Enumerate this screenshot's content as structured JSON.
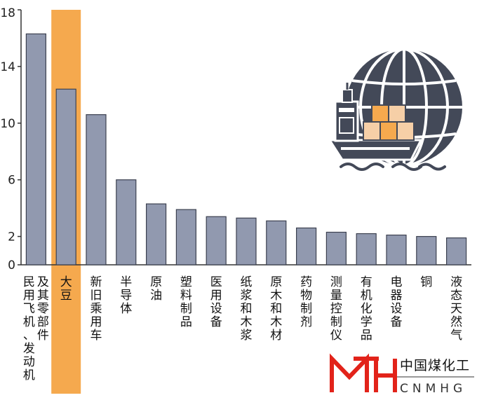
{
  "chart_data": {
    "type": "bar",
    "categories": [
      "民用飞机、发动机及其零部件",
      "大豆",
      "新旧乘用车",
      "半导体",
      "原油",
      "塑料制品",
      "医用设备",
      "纸浆和木浆",
      "原木和木材",
      "药物制剂",
      "测量控制仪",
      "有机化学品",
      "电器设备",
      "铜",
      "液态天然气"
    ],
    "label_columns": [
      [
        "民用飞机、发动机",
        "及其零部件"
      ],
      [
        "大豆"
      ],
      [
        "新旧乘用车"
      ],
      [
        "半导体"
      ],
      [
        "原油"
      ],
      [
        "塑料制品"
      ],
      [
        "医用设备"
      ],
      [
        "纸浆和木浆"
      ],
      [
        "原木和木材"
      ],
      [
        "药物制剂"
      ],
      [
        "测量控制仪"
      ],
      [
        "有机化学品"
      ],
      [
        "电器设备"
      ],
      [
        "铜"
      ],
      [
        "液态天然气"
      ]
    ],
    "values": [
      16.3,
      12.4,
      10.6,
      6.0,
      4.3,
      3.9,
      3.4,
      3.3,
      3.1,
      2.6,
      2.3,
      2.2,
      2.1,
      2.0,
      1.9
    ],
    "highlight_index": 1,
    "ylim": [
      0,
      18
    ],
    "yticks": [
      0,
      2,
      6,
      10,
      14,
      18
    ],
    "title": "",
    "xlabel": "",
    "ylabel": "",
    "grid": false,
    "colors": {
      "bar": "#9199af",
      "bar_stroke": "#3c4150",
      "highlight": "#f5a94e",
      "axis": "#333333"
    }
  },
  "icon": "globe-cargo-ship-icon",
  "watermark": {
    "cn": "中国煤化工",
    "en": "CNMHG"
  }
}
